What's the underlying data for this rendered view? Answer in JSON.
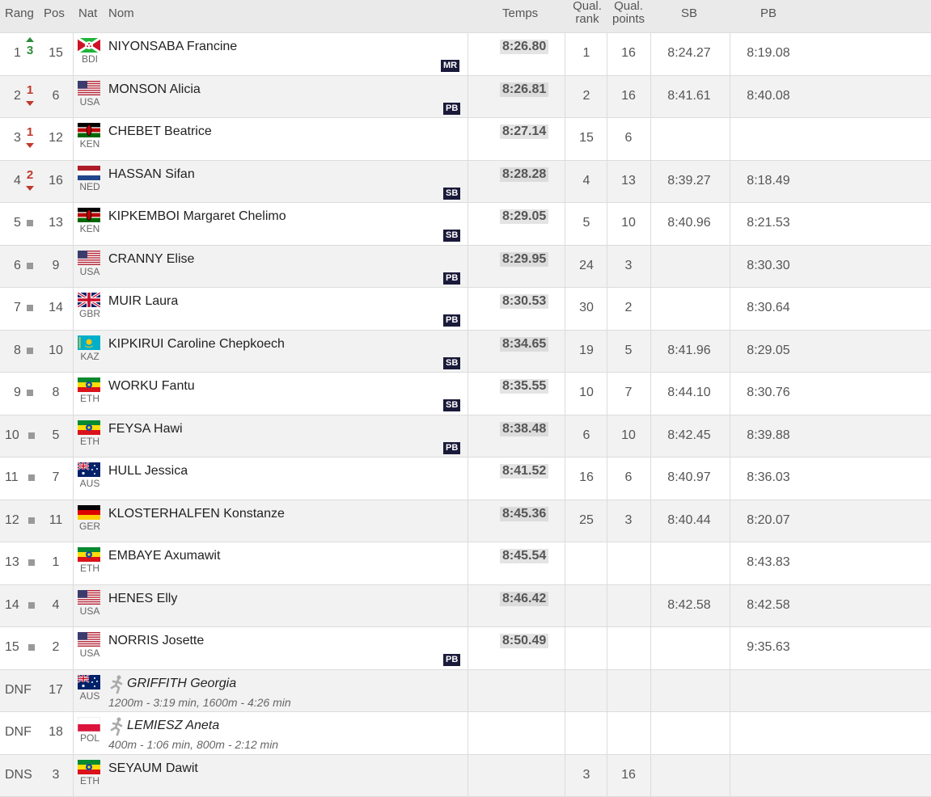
{
  "header": {
    "rang": "Rang",
    "pos": "Pos",
    "nat": "Nat",
    "nom": "Nom",
    "temps": "Temps",
    "qual_rank_1": "Qual.",
    "qual_rank_2": "rank",
    "qual_points_1": "Qual.",
    "qual_points_2": "points",
    "sb": "SB",
    "pb": "PB"
  },
  "rows": [
    {
      "rang": "1",
      "move": "up",
      "move_n": "3",
      "pos": "15",
      "noc": "BDI",
      "flag": "bdi",
      "name": "NIYONSABA Francine",
      "badge": "MR",
      "time": "8:26.80",
      "qr": "1",
      "qp": "16",
      "sb": "8:24.27",
      "pb": "8:19.08"
    },
    {
      "rang": "2",
      "move": "down",
      "move_n": "1",
      "pos": "6",
      "noc": "USA",
      "flag": "usa",
      "name": "MONSON Alicia",
      "badge": "PB",
      "time": "8:26.81",
      "qr": "2",
      "qp": "16",
      "sb": "8:41.61",
      "pb": "8:40.08"
    },
    {
      "rang": "3",
      "move": "down",
      "move_n": "1",
      "pos": "12",
      "noc": "KEN",
      "flag": "ken",
      "name": "CHEBET Beatrice",
      "badge": "",
      "time": "8:27.14",
      "qr": "15",
      "qp": "6",
      "sb": "",
      "pb": ""
    },
    {
      "rang": "4",
      "move": "down",
      "move_n": "2",
      "pos": "16",
      "noc": "NED",
      "flag": "ned",
      "name": "HASSAN Sifan",
      "badge": "SB",
      "time": "8:28.28",
      "qr": "4",
      "qp": "13",
      "sb": "8:39.27",
      "pb": "8:18.49"
    },
    {
      "rang": "5",
      "move": "same",
      "move_n": "",
      "pos": "13",
      "noc": "KEN",
      "flag": "ken",
      "name": "KIPKEMBOI Margaret Chelimo",
      "badge": "SB",
      "time": "8:29.05",
      "qr": "5",
      "qp": "10",
      "sb": "8:40.96",
      "pb": "8:21.53"
    },
    {
      "rang": "6",
      "move": "same",
      "move_n": "",
      "pos": "9",
      "noc": "USA",
      "flag": "usa",
      "name": "CRANNY Elise",
      "badge": "PB",
      "time": "8:29.95",
      "qr": "24",
      "qp": "3",
      "sb": "",
      "pb": "8:30.30"
    },
    {
      "rang": "7",
      "move": "same",
      "move_n": "",
      "pos": "14",
      "noc": "GBR",
      "flag": "gbr",
      "name": "MUIR Laura",
      "badge": "PB",
      "time": "8:30.53",
      "qr": "30",
      "qp": "2",
      "sb": "",
      "pb": "8:30.64"
    },
    {
      "rang": "8",
      "move": "same",
      "move_n": "",
      "pos": "10",
      "noc": "KAZ",
      "flag": "kaz",
      "name": "KIPKIRUI Caroline Chepkoech",
      "badge": "SB",
      "time": "8:34.65",
      "qr": "19",
      "qp": "5",
      "sb": "8:41.96",
      "pb": "8:29.05"
    },
    {
      "rang": "9",
      "move": "same",
      "move_n": "",
      "pos": "8",
      "noc": "ETH",
      "flag": "eth",
      "name": "WORKU Fantu",
      "badge": "SB",
      "time": "8:35.55",
      "qr": "10",
      "qp": "7",
      "sb": "8:44.10",
      "pb": "8:30.76"
    },
    {
      "rang": "10",
      "move": "same",
      "move_n": "",
      "pos": "5",
      "noc": "ETH",
      "flag": "eth",
      "name": "FEYSA Hawi",
      "badge": "PB",
      "time": "8:38.48",
      "qr": "6",
      "qp": "10",
      "sb": "8:42.45",
      "pb": "8:39.88"
    },
    {
      "rang": "11",
      "move": "same",
      "move_n": "",
      "pos": "7",
      "noc": "AUS",
      "flag": "aus",
      "name": "HULL Jessica",
      "badge": "",
      "time": "8:41.52",
      "qr": "16",
      "qp": "6",
      "sb": "8:40.97",
      "pb": "8:36.03"
    },
    {
      "rang": "12",
      "move": "same",
      "move_n": "",
      "pos": "11",
      "noc": "GER",
      "flag": "ger",
      "name": "KLOSTERHALFEN Konstanze",
      "badge": "",
      "time": "8:45.36",
      "qr": "25",
      "qp": "3",
      "sb": "8:40.44",
      "pb": "8:20.07"
    },
    {
      "rang": "13",
      "move": "same",
      "move_n": "",
      "pos": "1",
      "noc": "ETH",
      "flag": "eth",
      "name": "EMBAYE Axumawit",
      "badge": "",
      "time": "8:45.54",
      "qr": "",
      "qp": "",
      "sb": "",
      "pb": "8:43.83"
    },
    {
      "rang": "14",
      "move": "same",
      "move_n": "",
      "pos": "4",
      "noc": "USA",
      "flag": "usa",
      "name": "HENES Elly",
      "badge": "",
      "time": "8:46.42",
      "qr": "",
      "qp": "",
      "sb": "8:42.58",
      "pb": "8:42.58"
    },
    {
      "rang": "15",
      "move": "same",
      "move_n": "",
      "pos": "2",
      "noc": "USA",
      "flag": "usa",
      "name": "NORRIS Josette",
      "badge": "PB",
      "time": "8:50.49",
      "qr": "",
      "qp": "",
      "sb": "",
      "pb": "9:35.63"
    },
    {
      "rang": "DNF",
      "move": "",
      "move_n": "",
      "pos": "17",
      "noc": "AUS",
      "flag": "aus",
      "name": "GRIFFITH Georgia",
      "italic": true,
      "note": "1200m - 3:19 min, 1600m - 4:26 min",
      "badge": "",
      "time": "",
      "qr": "",
      "qp": "",
      "sb": "",
      "pb": ""
    },
    {
      "rang": "DNF",
      "move": "",
      "move_n": "",
      "pos": "18",
      "noc": "POL",
      "flag": "pol",
      "name": "LEMIESZ Aneta",
      "italic": true,
      "note": "400m - 1:06 min, 800m - 2:12 min",
      "badge": "",
      "time": "",
      "qr": "",
      "qp": "",
      "sb": "",
      "pb": ""
    },
    {
      "rang": "DNS",
      "move": "",
      "move_n": "",
      "pos": "3",
      "noc": "ETH",
      "flag": "eth",
      "name": "SEYAUM Dawit",
      "badge": "",
      "time": "",
      "qr": "3",
      "qp": "16",
      "sb": "",
      "pb": ""
    }
  ]
}
